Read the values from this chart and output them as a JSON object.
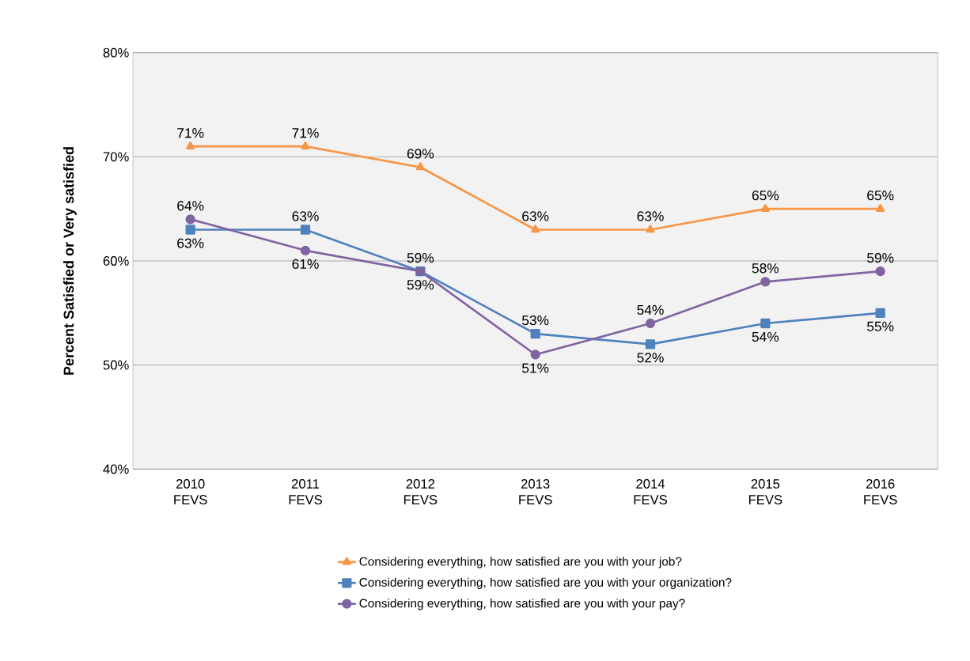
{
  "chart_data": {
    "type": "line",
    "ylabel": "Percent Satisfied or Very satisfied",
    "categories": [
      "2010 FEVS",
      "2011 FEVS",
      "2012 FEVS",
      "2013 FEVS",
      "2014 FEVS",
      "2015 FEVS",
      "2016 FEVS"
    ],
    "ylim": [
      40,
      80
    ],
    "yticks": [
      {
        "value": 40,
        "label": "40%"
      },
      {
        "value": 50,
        "label": "50%"
      },
      {
        "value": 60,
        "label": "60%"
      },
      {
        "value": 70,
        "label": "70%"
      },
      {
        "value": 80,
        "label": "80%"
      }
    ],
    "grid": "y",
    "legend": "bottom",
    "line_style": "solid",
    "series": [
      {
        "name": "Considering everything, how satisfied are you with your job?",
        "color": "#f79646",
        "marker": "triangle",
        "values": [
          71,
          71,
          69,
          63,
          63,
          65,
          65
        ],
        "value_labels": [
          "71%",
          "71%",
          "69%",
          "63%",
          "63%",
          "65%",
          "65%"
        ]
      },
      {
        "name": "Considering everything, how satisfied are you with your organization?",
        "color": "#4f81bd",
        "marker": "square",
        "values": [
          63,
          63,
          59,
          53,
          52,
          54,
          55
        ],
        "value_labels": [
          "63%",
          "63%",
          "59%",
          "53%",
          "52%",
          "54%",
          "55%"
        ]
      },
      {
        "name": "Considering everything, how satisfied are you with your pay?",
        "color": "#8064a2",
        "marker": "circle",
        "values": [
          64,
          61,
          59,
          51,
          54,
          58,
          59
        ],
        "value_labels": [
          "64%",
          "61%",
          "59%",
          "51%",
          "54%",
          "58%",
          "59%"
        ]
      }
    ]
  }
}
